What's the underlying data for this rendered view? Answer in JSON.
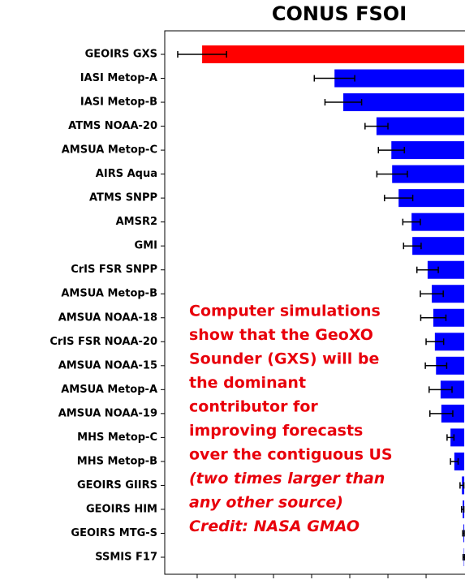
{
  "chart_data": {
    "type": "barh",
    "title": "CONUS FSOI",
    "categories": [
      "GEOIRS GXS",
      "IASI Metop-A",
      "IASI Metop-B",
      "ATMS NOAA-20",
      "AMSUA Metop-C",
      "AIRS Aqua",
      "ATMS SNPP",
      "AMSR2",
      "GMI",
      "CrIS FSR SNPP",
      "AMSUA Metop-B",
      "AMSUA NOAA-18",
      "CrIS FSR NOAA-20",
      "AMSUA NOAA-15",
      "AMSUA Metop-A",
      "AMSUA NOAA-19",
      "MHS Metop-C",
      "MHS Metop-B",
      "GEOIRS GIIRS",
      "GEOIRS HIM",
      "GEOIRS MTG-S",
      "SSMIS F17"
    ],
    "values": [
      -6.87,
      -3.4,
      -3.17,
      -2.3,
      -1.91,
      -1.89,
      -1.72,
      -1.38,
      -1.36,
      -0.96,
      -0.85,
      -0.81,
      -0.77,
      -0.74,
      -0.62,
      -0.6,
      -0.36,
      -0.26,
      -0.06,
      -0.04,
      -0.02,
      -0.01
    ],
    "errors": [
      0.64,
      0.53,
      0.48,
      0.3,
      0.34,
      0.4,
      0.37,
      0.23,
      0.23,
      0.28,
      0.3,
      0.33,
      0.23,
      0.28,
      0.3,
      0.3,
      0.09,
      0.1,
      0.05,
      0.03,
      0.02,
      0.02
    ],
    "colors": [
      "#ff0000",
      "#0000ff",
      "#0000ff",
      "#0000ff",
      "#0000ff",
      "#0000ff",
      "#0000ff",
      "#0000ff",
      "#0000ff",
      "#0000ff",
      "#0000ff",
      "#0000ff",
      "#0000ff",
      "#0000ff",
      "#0000ff",
      "#0000ff",
      "#0000ff",
      "#0000ff",
      "#0000ff",
      "#0000ff",
      "#0000ff",
      "#0000ff"
    ],
    "xlim": [
      -7.85,
      0.02
    ],
    "xticks": [
      -7,
      -6,
      -5,
      -4,
      -3,
      -2,
      -1
    ],
    "annotation": [
      "Computer simulations",
      "show that the GeoXO",
      "Sounder (GXS) will be",
      "the dominant",
      "contributor for",
      "improving forecasts",
      "over the contiguous US",
      "(two times larger than",
      "any other source)",
      "Credit: NASA GMAO"
    ]
  }
}
